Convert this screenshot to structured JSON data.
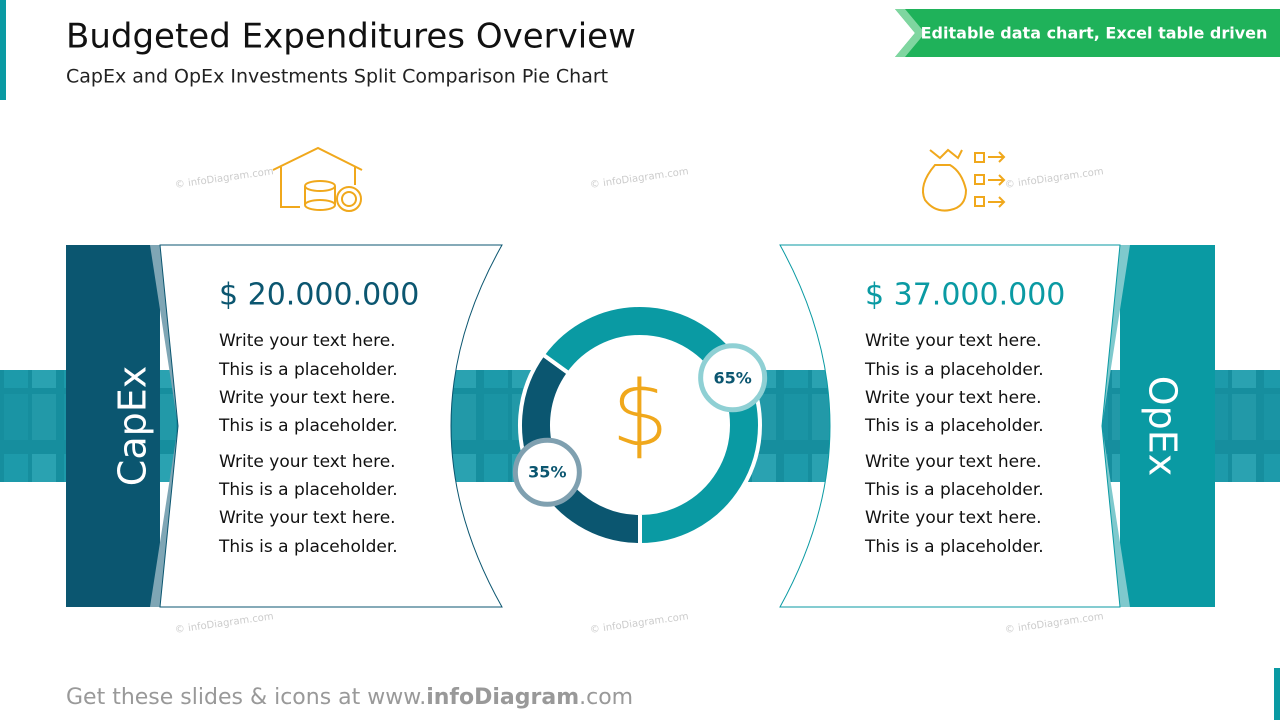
{
  "header": {
    "title": "Budgeted Expenditures Overview",
    "subtitle": "CapEx and OpEx Investments Split Comparison Pie Chart",
    "badge": "Editable data chart, Excel table driven"
  },
  "chart_data": {
    "type": "donut",
    "categories": [
      "CapEx",
      "OpEx"
    ],
    "values": [
      35,
      65
    ],
    "value_labels": [
      "35%",
      "65%"
    ],
    "colors": [
      "#0b5670",
      "#0a9aa3"
    ]
  },
  "panels": [
    {
      "amount": "$ 20.000.000",
      "lines": [
        "Write your text here.",
        "This is a placeholder.",
        "Write your text here.",
        "This is a placeholder.",
        "Write your text here.",
        "This is a placeholder.",
        "Write your text here.",
        "This is a placeholder."
      ]
    },
    {
      "amount": "$ 37.000.000",
      "lines": [
        "Write your text here.",
        "This is a placeholder.",
        "Write your text here.",
        "This is a placeholder.",
        "Write your text here.",
        "This is a placeholder.",
        "Write your text here.",
        "This is a placeholder."
      ]
    }
  ],
  "watermark": "© infoDiagram.com",
  "footer": {
    "prefix": "Get these slides & icons at www.",
    "brand": "infoDiagram",
    "suffix": ".com"
  }
}
